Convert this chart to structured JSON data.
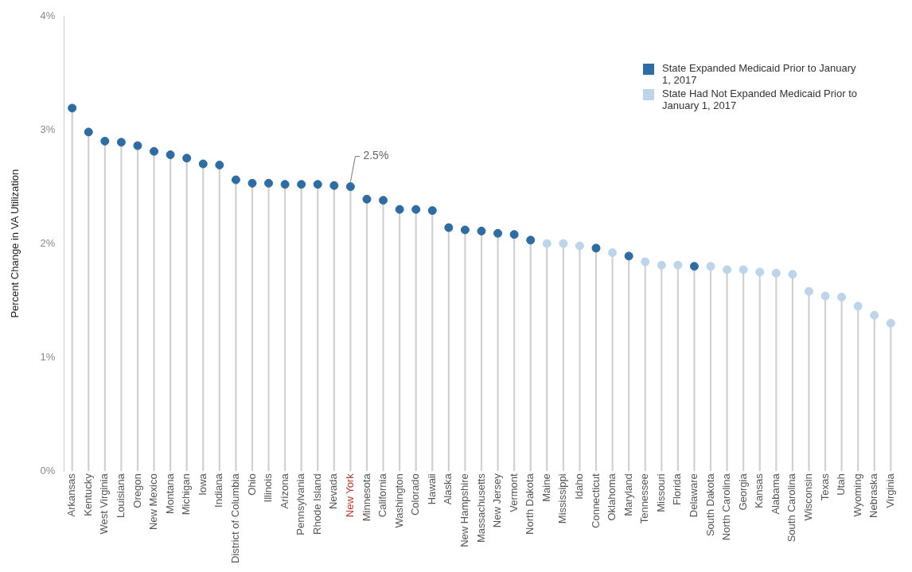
{
  "chart_data": {
    "type": "lollipop",
    "ylabel": "Percent Change in VA Utilization",
    "categories": [
      "Arkansas",
      "Kentucky",
      "West Virginia",
      "Louisiana",
      "Oregon",
      "New Mexico",
      "Montana",
      "Michigan",
      "Iowa",
      "Indiana",
      "District of Columbia",
      "Ohio",
      "Illinois",
      "Arizona",
      "Pennsylvania",
      "Rhode Island",
      "Nevada",
      "New York",
      "Minnesota",
      "California",
      "Washington",
      "Colorado",
      "Hawaii",
      "Alaska",
      "New Hampshire",
      "Massachusetts",
      "New Jersey",
      "Vermont",
      "North Dakota",
      "Maine",
      "Mississippi",
      "Idaho",
      "Connecticut",
      "Oklahoma",
      "Maryland",
      "Tennessee",
      "Missouri",
      "Florida",
      "Delaware",
      "South Dakota",
      "North Carolina",
      "Georgia",
      "Kansas",
      "Alabama",
      "South Carolina",
      "Wisconsin",
      "Texas",
      "Utah",
      "Wyoming",
      "Nebraska",
      "Virginia"
    ],
    "series": [
      {
        "name": "State Expanded Medicaid Prior to January 1, 2017",
        "color": "#2e6da4",
        "values": [
          3.19,
          2.98,
          2.9,
          2.89,
          2.86,
          2.81,
          2.78,
          2.75,
          2.7,
          2.69,
          2.56,
          2.53,
          2.53,
          2.52,
          2.52,
          2.52,
          2.51,
          2.5,
          2.39,
          2.38,
          2.3,
          2.3,
          2.29,
          2.14,
          2.12,
          2.11,
          2.09,
          2.08,
          2.03,
          null,
          null,
          null,
          1.96,
          null,
          1.89,
          null,
          null,
          null,
          1.8,
          null,
          null,
          null,
          null,
          null,
          null,
          null,
          null,
          null,
          null,
          null,
          null
        ]
      },
      {
        "name": "State Had Not Expanded Medicaid Prior to January 1, 2017",
        "color": "#bcd5ea",
        "values": [
          null,
          null,
          null,
          null,
          null,
          null,
          null,
          null,
          null,
          null,
          null,
          null,
          null,
          null,
          null,
          null,
          null,
          null,
          null,
          null,
          null,
          null,
          null,
          null,
          null,
          null,
          null,
          null,
          null,
          2.0,
          2.0,
          1.98,
          null,
          1.92,
          null,
          1.84,
          1.81,
          1.81,
          null,
          1.8,
          1.77,
          1.77,
          1.75,
          1.74,
          1.73,
          1.58,
          1.54,
          1.53,
          1.45,
          1.37,
          1.3
        ]
      }
    ],
    "ylim": [
      0,
      4
    ],
    "yticks": [
      {
        "value": 0,
        "label": "0%"
      },
      {
        "value": 1,
        "label": "1%"
      },
      {
        "value": 2,
        "label": "2%"
      },
      {
        "value": 3,
        "label": "3%"
      },
      {
        "value": 4,
        "label": "4%"
      }
    ],
    "grid": false,
    "legend": "top right",
    "marker": "circle",
    "annotations": [
      {
        "text": "2.5%",
        "x": "New York",
        "y": 2.5
      }
    ]
  }
}
